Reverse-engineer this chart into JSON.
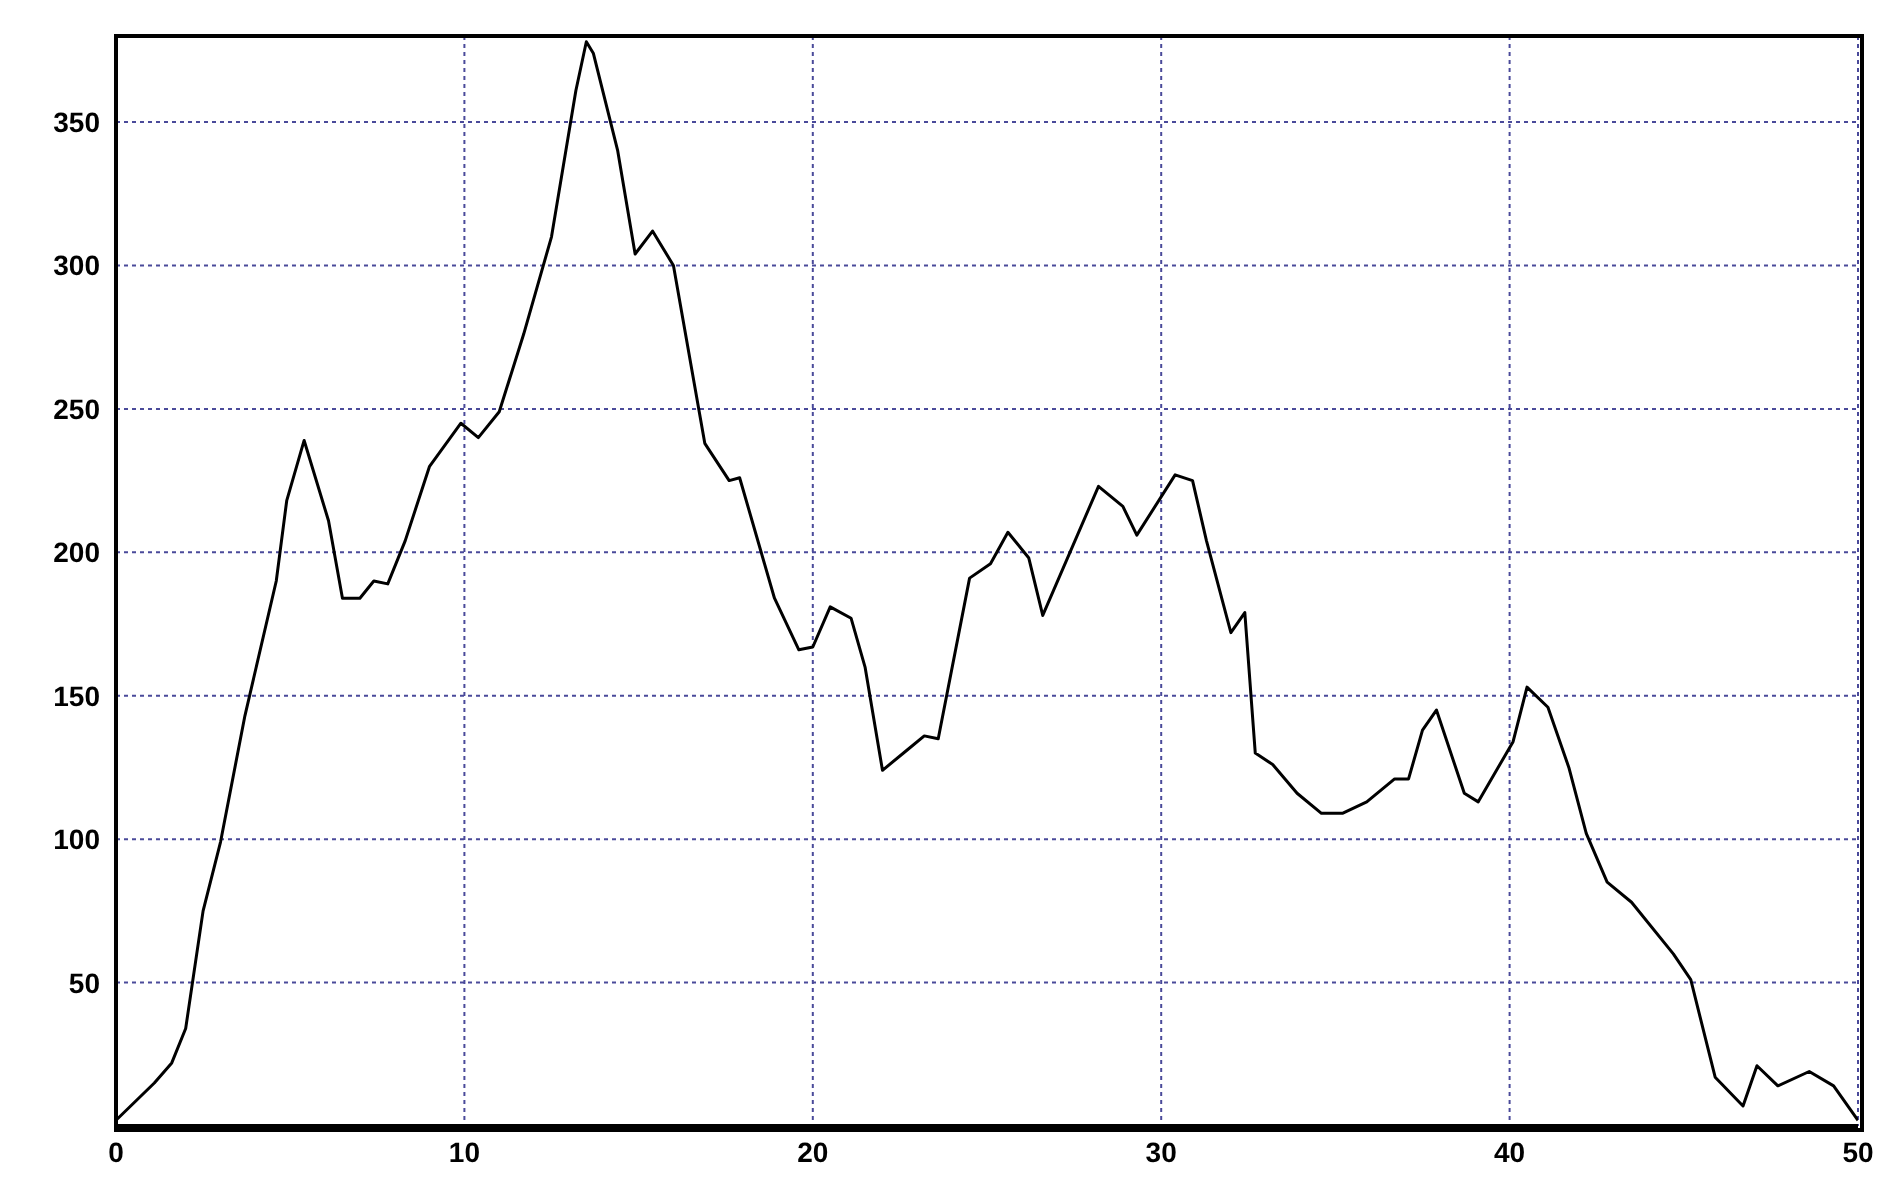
{
  "chart_data": {
    "type": "line",
    "x": [
      0,
      1.1,
      1.6,
      2,
      2.5,
      3,
      3.7,
      4.6,
      4.9,
      5.4,
      6.1,
      6.5,
      7,
      7.4,
      7.8,
      8.3,
      9,
      9.9,
      10.4,
      11,
      11.7,
      12.5,
      13.2,
      13.5,
      13.7,
      14.4,
      14.9,
      15.4,
      16,
      16.9,
      17.6,
      17.9,
      18.9,
      19.6,
      20,
      20.5,
      21.1,
      21.5,
      22,
      22.7,
      23.2,
      23.6,
      24.5,
      25.1,
      25.6,
      26.2,
      26.6,
      28.2,
      28.9,
      29.3,
      30.4,
      30.9,
      31.3,
      32,
      32.4,
      32.7,
      33.2,
      33.9,
      34.6,
      35.2,
      35.9,
      36.7,
      37.1,
      37.5,
      37.9,
      38.7,
      39.1,
      40.1,
      40.5,
      41.1,
      41.7,
      42.2,
      42.8,
      43.5,
      44.7,
      45.2,
      45.9,
      46.7,
      47.1,
      47.7,
      48.6,
      49.3,
      50
    ],
    "series": [
      {
        "color": "#000000",
        "values": [
          2,
          15,
          22,
          34,
          75,
          99,
          143,
          190,
          218,
          239,
          211,
          184,
          184,
          190,
          189,
          204,
          230,
          245,
          240,
          249,
          276,
          310,
          361,
          378,
          374,
          340,
          304,
          312,
          300,
          238,
          225,
          226,
          184,
          166,
          167,
          181,
          177,
          160,
          124,
          131,
          136,
          135,
          191,
          196,
          207,
          198,
          178,
          223,
          216,
          206,
          227,
          225,
          204,
          172,
          179,
          130,
          126,
          116,
          109,
          109,
          113,
          121,
          121,
          138,
          145,
          116,
          113,
          134,
          153,
          146,
          125,
          102,
          85,
          78,
          60,
          51,
          17,
          7,
          21,
          14,
          19,
          14,
          2
        ]
      }
    ],
    "xlim": [
      0,
      50
    ],
    "xticks": [
      0,
      10,
      20,
      30,
      40,
      50
    ],
    "ylim": [
      0,
      380
    ],
    "yticks": [
      50,
      100,
      150,
      200,
      250,
      300,
      350
    ],
    "grid": true,
    "marker": "none",
    "line_style": "solid"
  }
}
